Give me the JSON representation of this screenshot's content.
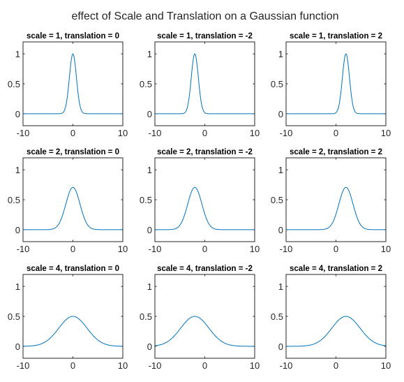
{
  "figure": {
    "title": "effect of Scale and Translation on a Gaussian function"
  },
  "chart_data": [
    {
      "type": "line",
      "title": "scale = 1, translation = 0",
      "function": "exp(-((x - translation)/scale)^2)/sqrt(scale)",
      "scale": 1,
      "translation": 0,
      "xlim": [
        -10,
        10
      ],
      "ylim": [
        -0.2,
        1.2
      ],
      "xticks": [
        "-10",
        "0",
        "10"
      ],
      "yticks": [
        "0",
        "0.5",
        "1"
      ],
      "series": [
        {
          "color": "#0072BD",
          "x": [
            -10,
            -3,
            -2,
            -1.5,
            -1,
            -0.5,
            0,
            0.5,
            1,
            1.5,
            2,
            3,
            10
          ],
          "y": [
            0,
            0.0001,
            0.018,
            0.105,
            0.368,
            0.779,
            1,
            0.779,
            0.368,
            0.105,
            0.018,
            0.0001,
            0
          ]
        }
      ]
    },
    {
      "type": "line",
      "title": "scale = 1, translation = -2",
      "function": "exp(-((x - translation)/scale)^2)/sqrt(scale)",
      "scale": 1,
      "translation": -2,
      "xlim": [
        -10,
        10
      ],
      "ylim": [
        -0.2,
        1.2
      ],
      "xticks": [
        "-10",
        "0",
        "10"
      ],
      "yticks": [
        "0",
        "0.5",
        "1"
      ],
      "series": [
        {
          "color": "#0072BD",
          "x": [
            -10,
            -5,
            -4,
            -3.5,
            -3,
            -2.5,
            -2,
            -1.5,
            -1,
            -0.5,
            0,
            1,
            10
          ],
          "y": [
            0,
            0.0001,
            0.018,
            0.105,
            0.368,
            0.779,
            1,
            0.779,
            0.368,
            0.105,
            0.018,
            0.0001,
            0
          ]
        }
      ]
    },
    {
      "type": "line",
      "title": "scale = 1, translation = 2",
      "function": "exp(-((x - translation)/scale)^2)/sqrt(scale)",
      "scale": 1,
      "translation": 2,
      "xlim": [
        -10,
        10
      ],
      "ylim": [
        -0.2,
        1.2
      ],
      "xticks": [
        "-10",
        "0",
        "10"
      ],
      "yticks": [
        "0",
        "0.5",
        "1"
      ],
      "series": [
        {
          "color": "#0072BD",
          "x": [
            -10,
            -1,
            0,
            0.5,
            1,
            1.5,
            2,
            2.5,
            3,
            3.5,
            4,
            5,
            10
          ],
          "y": [
            0,
            0.0001,
            0.018,
            0.105,
            0.368,
            0.779,
            1,
            0.779,
            0.368,
            0.105,
            0.018,
            0.0001,
            0
          ]
        }
      ]
    },
    {
      "type": "line",
      "title": "scale = 2, translation = 0",
      "function": "exp(-((x - translation)/scale)^2)/sqrt(scale)",
      "scale": 2,
      "translation": 0,
      "xlim": [
        -10,
        10
      ],
      "ylim": [
        -0.2,
        1.2
      ],
      "xticks": [
        "-10",
        "0",
        "10"
      ],
      "yticks": [
        "0",
        "0.5",
        "1"
      ],
      "series": [
        {
          "color": "#0072BD",
          "x": [
            -10,
            -6,
            -4,
            -3,
            -2,
            -1,
            0,
            1,
            2,
            3,
            4,
            6,
            10
          ],
          "y": [
            0,
            0.0001,
            0.013,
            0.074,
            0.26,
            0.551,
            0.707,
            0.551,
            0.26,
            0.074,
            0.013,
            0.0001,
            0
          ]
        }
      ]
    },
    {
      "type": "line",
      "title": "scale = 2, translation = -2",
      "function": "exp(-((x - translation)/scale)^2)/sqrt(scale)",
      "scale": 2,
      "translation": -2,
      "xlim": [
        -10,
        10
      ],
      "ylim": [
        -0.2,
        1.2
      ],
      "xticks": [
        "-10",
        "0",
        "10"
      ],
      "yticks": [
        "0",
        "0.5",
        "1"
      ],
      "series": [
        {
          "color": "#0072BD",
          "x": [
            -10,
            -8,
            -6,
            -5,
            -4,
            -3,
            -2,
            -1,
            0,
            1,
            2,
            4,
            10
          ],
          "y": [
            0,
            0.0001,
            0.013,
            0.074,
            0.26,
            0.551,
            0.707,
            0.551,
            0.26,
            0.074,
            0.013,
            0.0001,
            0
          ]
        }
      ]
    },
    {
      "type": "line",
      "title": "scale = 2, translation = 2",
      "function": "exp(-((x - translation)/scale)^2)/sqrt(scale)",
      "scale": 2,
      "translation": 2,
      "xlim": [
        -10,
        10
      ],
      "ylim": [
        -0.2,
        1.2
      ],
      "xticks": [
        "-10",
        "0",
        "10"
      ],
      "yticks": [
        "0",
        "0.5",
        "1"
      ],
      "series": [
        {
          "color": "#0072BD",
          "x": [
            -10,
            -4,
            -2,
            -1,
            0,
            1,
            2,
            3,
            4,
            5,
            6,
            8,
            10
          ],
          "y": [
            0,
            0.0001,
            0.013,
            0.074,
            0.26,
            0.551,
            0.707,
            0.551,
            0.26,
            0.074,
            0.013,
            0.0001,
            0
          ]
        }
      ]
    },
    {
      "type": "line",
      "title": "scale = 4, translation = 0",
      "function": "exp(-((x - translation)/scale)^2)/sqrt(scale)",
      "scale": 4,
      "translation": 0,
      "xlim": [
        -10,
        10
      ],
      "ylim": [
        -0.2,
        1.2
      ],
      "xticks": [
        "-10",
        "0",
        "10"
      ],
      "yticks": [
        "0",
        "0.5",
        "1"
      ],
      "series": [
        {
          "color": "#0072BD",
          "x": [
            -10,
            -8,
            -6,
            -4,
            -2,
            0,
            2,
            4,
            6,
            8,
            10
          ],
          "y": [
            0.001,
            0.009,
            0.053,
            0.184,
            0.389,
            0.5,
            0.389,
            0.184,
            0.053,
            0.009,
            0.001
          ]
        }
      ]
    },
    {
      "type": "line",
      "title": "scale = 4, translation = -2",
      "function": "exp(-((x - translation)/scale)^2)/sqrt(scale)",
      "scale": 4,
      "translation": -2,
      "xlim": [
        -10,
        10
      ],
      "ylim": [
        -0.2,
        1.2
      ],
      "xticks": [
        "-10",
        "0",
        "10"
      ],
      "yticks": [
        "0",
        "0.5",
        "1"
      ],
      "series": [
        {
          "color": "#0072BD",
          "x": [
            -10,
            -8,
            -6,
            -4,
            -2,
            0,
            2,
            4,
            6,
            8,
            10
          ],
          "y": [
            0.009,
            0.053,
            0.184,
            0.389,
            0.5,
            0.389,
            0.184,
            0.053,
            0.009,
            0.001,
            0
          ]
        }
      ]
    },
    {
      "type": "line",
      "title": "scale = 4, translation = 2",
      "function": "exp(-((x - translation)/scale)^2)/sqrt(scale)",
      "scale": 4,
      "translation": 2,
      "xlim": [
        -10,
        10
      ],
      "ylim": [
        -0.2,
        1.2
      ],
      "xticks": [
        "-10",
        "0",
        "10"
      ],
      "yticks": [
        "0",
        "0.5",
        "1"
      ],
      "series": [
        {
          "color": "#0072BD",
          "x": [
            -10,
            -8,
            -6,
            -4,
            -2,
            0,
            2,
            4,
            6,
            8,
            10
          ],
          "y": [
            0,
            0.001,
            0.009,
            0.053,
            0.184,
            0.389,
            0.5,
            0.389,
            0.184,
            0.053,
            0.009
          ]
        }
      ]
    }
  ]
}
